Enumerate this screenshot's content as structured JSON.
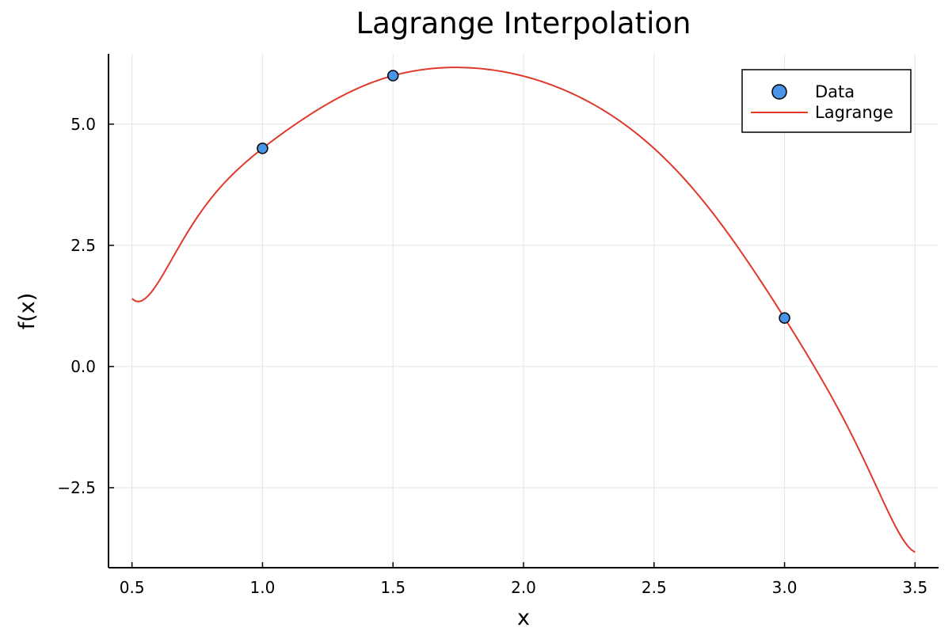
{
  "chart_data": {
    "type": "line",
    "title": "Lagrange Interpolation",
    "xlabel": "x",
    "ylabel": "f(x)",
    "xlim": [
      0.41,
      3.59
    ],
    "ylim": [
      -4.15,
      6.45
    ],
    "x_ticks": [
      0.5,
      1.0,
      1.5,
      2.0,
      2.5,
      3.0,
      3.5
    ],
    "x_tick_labels": [
      "0.5",
      "1.0",
      "1.5",
      "2.0",
      "2.5",
      "3.0",
      "3.5"
    ],
    "y_ticks": [
      -2.5,
      0.0,
      2.5,
      5.0
    ],
    "y_tick_labels": [
      "−2.5",
      "0.0",
      "2.5",
      "5.0"
    ],
    "grid": true,
    "legend_position": "top-right",
    "series": [
      {
        "name": "Data",
        "kind": "scatter",
        "color": "#4a94e8",
        "x": [
          1.0,
          1.5,
          3.0
        ],
        "y": [
          4.5,
          6.0,
          1.0
        ]
      },
      {
        "name": "Lagrange",
        "kind": "line",
        "color": "#e0392b",
        "x": [
          0.5,
          0.75,
          1.0,
          1.25,
          1.5,
          1.75,
          2.0,
          2.25,
          2.5,
          2.75,
          3.0,
          3.25,
          3.5
        ],
        "y": [
          1.4,
          3.08,
          4.5,
          5.42,
          6.0,
          6.17,
          5.99,
          5.46,
          4.5,
          2.99,
          1.0,
          -1.33,
          -3.83
        ]
      }
    ]
  }
}
